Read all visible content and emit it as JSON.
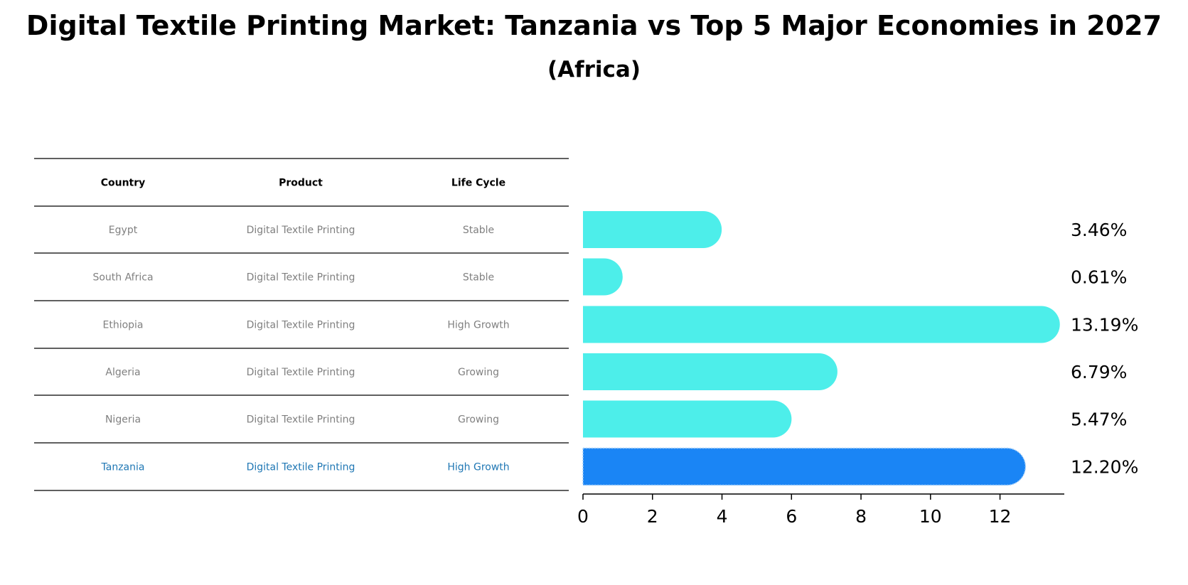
{
  "title": "Digital Textile Printing Market: Tanzania vs Top 5 Major Economies in 2027",
  "subtitle": "(Africa)",
  "chart_data": {
    "type": "bar",
    "orientation": "horizontal",
    "table": {
      "columns": [
        "Country",
        "Product",
        "Life Cycle"
      ],
      "rows": [
        [
          "Egypt",
          "Digital Textile Printing",
          "Stable"
        ],
        [
          "South Africa",
          "Digital Textile Printing",
          "Stable"
        ],
        [
          "Ethiopia",
          "Digital Textile Printing",
          "High Growth"
        ],
        [
          "Algeria",
          "Digital Textile Printing",
          "Growing"
        ],
        [
          "Nigeria",
          "Digital Textile Printing",
          "Growing"
        ],
        [
          "Tanzania",
          "Digital Textile Printing",
          "High Growth"
        ]
      ],
      "highlight_row": 5
    },
    "categories": [
      "Egypt",
      "South Africa",
      "Ethiopia",
      "Algeria",
      "Nigeria",
      "Tanzania"
    ],
    "values": [
      3.46,
      0.61,
      13.19,
      6.79,
      5.47,
      12.2
    ],
    "value_labels": [
      "3.46%",
      "0.61%",
      "13.19%",
      "6.79%",
      "5.47%",
      "12.20%"
    ],
    "xticks": [
      0,
      2,
      4,
      6,
      8,
      10,
      12
    ],
    "xlim": [
      0,
      13.85
    ],
    "colors": {
      "default": "#4deeea",
      "highlight": "#1a85f5",
      "highlight_text": "#1f77b4"
    },
    "grid": false,
    "legend": "none"
  }
}
